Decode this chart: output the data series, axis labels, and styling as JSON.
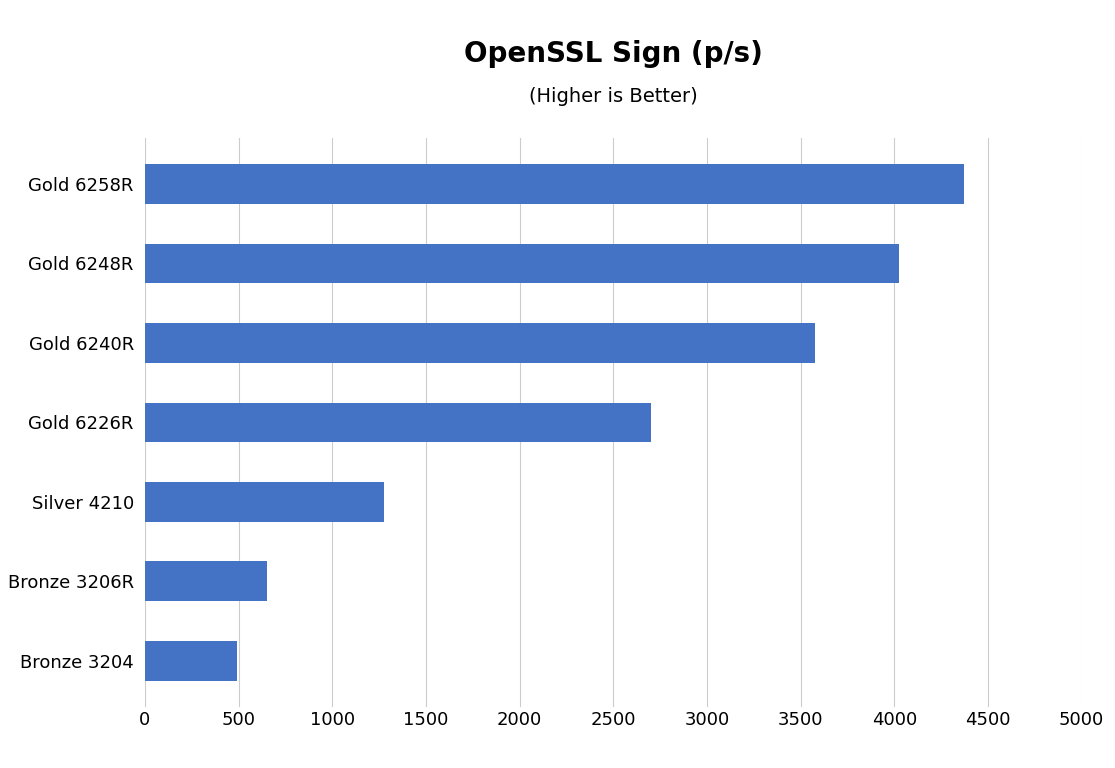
{
  "title": "OpenSSL Sign (p/s)",
  "subtitle": "(Higher is Better)",
  "categories": [
    "Bronze 3204",
    "Bronze 3206R",
    "Silver 4210",
    "Gold 6226R",
    "Gold 6240R",
    "Gold 6248R",
    "Gold 6258R"
  ],
  "values": [
    490,
    650,
    1275,
    2700,
    3575,
    4025,
    4375
  ],
  "bar_color": "#4472C4",
  "xlim": [
    0,
    5000
  ],
  "xticks": [
    0,
    500,
    1000,
    1500,
    2000,
    2500,
    3000,
    3500,
    4000,
    4500,
    5000
  ],
  "background_color": "#ffffff",
  "title_fontsize": 20,
  "subtitle_fontsize": 14,
  "tick_fontsize": 13,
  "label_fontsize": 13,
  "bar_height": 0.5,
  "grid_color": "#cccccc",
  "grid_linewidth": 0.8
}
